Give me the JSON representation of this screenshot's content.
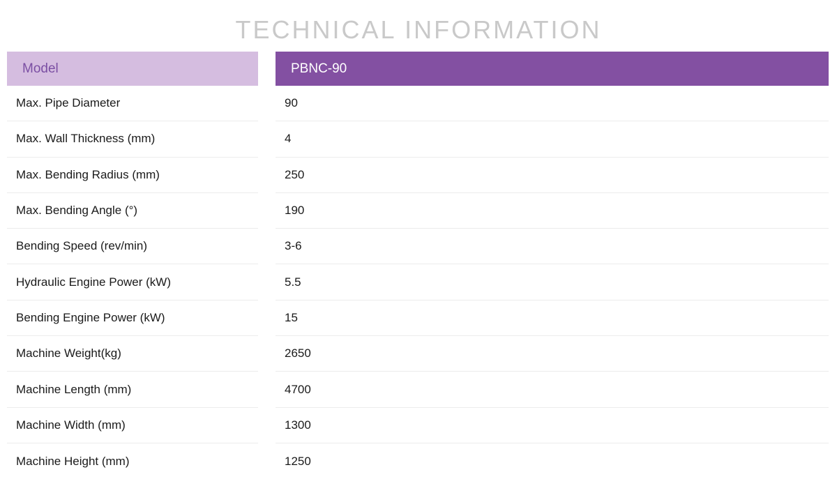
{
  "title": "TECHNICAL INFORMATION",
  "header": {
    "label": "Model",
    "value": "PBNC-90"
  },
  "rows": [
    {
      "label": "Max. Pipe Diameter",
      "value": "90"
    },
    {
      "label": "Max. Wall Thickness (mm)",
      "value": "4"
    },
    {
      "label": "Max. Bending Radius (mm)",
      "value": "250"
    },
    {
      "label": "Max. Bending Angle (°)",
      "value": "190"
    },
    {
      "label": "Bending Speed (rev/min)",
      "value": "3-6"
    },
    {
      "label": "Hydraulic Engine Power (kW)",
      "value": "5.5"
    },
    {
      "label": "Bending Engine Power (kW)",
      "value": "15"
    },
    {
      "label": "Machine Weight(kg)",
      "value": "2650"
    },
    {
      "label": "Machine Length (mm)",
      "value": "4700"
    },
    {
      "label": "Machine Width (mm)",
      "value": "1300"
    },
    {
      "label": "Machine Height (mm)",
      "value": "1250"
    }
  ],
  "colors": {
    "header_label_bg": "#d5bde0",
    "header_label_text": "#7b4fa3",
    "header_value_bg": "#8350a2",
    "title_text": "#c9c9c9"
  }
}
